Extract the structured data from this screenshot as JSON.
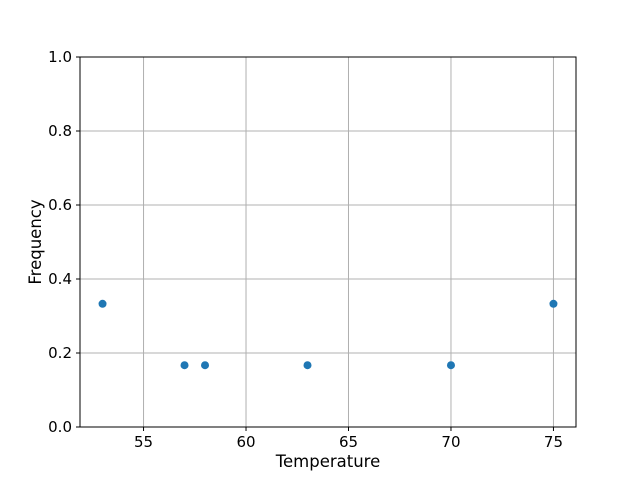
{
  "figure": {
    "background": "#ffffff"
  },
  "chart_data": {
    "type": "scatter",
    "title": "",
    "xlabel": "Temperature",
    "ylabel": "Frequency",
    "xlim": [
      51.9,
      76.1
    ],
    "ylim": [
      0.0,
      1.0
    ],
    "xtick_values": [
      55,
      60,
      65,
      70,
      75
    ],
    "xtick_labels": [
      "55",
      "60",
      "65",
      "70",
      "75"
    ],
    "ytick_values": [
      0.0,
      0.2,
      0.4,
      0.6,
      0.8,
      1.0
    ],
    "ytick_labels": [
      "0.0",
      "0.2",
      "0.4",
      "0.6",
      "0.8",
      "1.0"
    ],
    "grid": true,
    "legend": false,
    "marker_color": "#1f77b4",
    "marker_radius": 4,
    "grid_color": "#b0b0b0",
    "axis_color": "#000000",
    "text_color": "#000000",
    "series": [
      {
        "name": "frequency-points",
        "marker": "circle",
        "color": "#1f77b4",
        "points": [
          {
            "x": 53,
            "y": 0.333
          },
          {
            "x": 57,
            "y": 0.167
          },
          {
            "x": 58,
            "y": 0.167
          },
          {
            "x": 63,
            "y": 0.167
          },
          {
            "x": 70,
            "y": 0.167
          },
          {
            "x": 75,
            "y": 0.333
          }
        ]
      }
    ]
  }
}
